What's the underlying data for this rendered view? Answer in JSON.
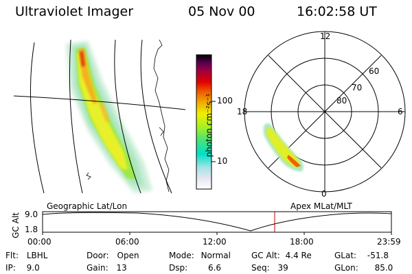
{
  "header": {
    "instrument": "Ultraviolet Imager",
    "date": "05 Nov 00",
    "time": "16:02:58 UT"
  },
  "colorbar": {
    "label": "photon cm⁻²s⁻¹",
    "ticks": [
      "100",
      "10"
    ],
    "colors": [
      "#ffffff",
      "#e0e0f0",
      "#a0e0e0",
      "#00e0d0",
      "#40e080",
      "#a0f020",
      "#f0f000",
      "#f0b000",
      "#f06000",
      "#e00000",
      "#a00040",
      "#5a0050",
      "#000000"
    ]
  },
  "map_panels": {
    "left_caption": "Geographic Lat/Lon",
    "right_caption": "Apex MLat/MLT"
  },
  "polar": {
    "mlt_labels": {
      "top": "12",
      "right": "6",
      "bottom": "0",
      "left": "18"
    },
    "lat_labels": [
      "60",
      "70",
      "80"
    ]
  },
  "altitude_plot": {
    "ylabel": "GC Alt",
    "yticks": [
      "9.0",
      "1.8"
    ],
    "xticks": [
      "00:00",
      "06:00",
      "12:00",
      "18:00",
      "23:59"
    ],
    "marker_color": "#c00000"
  },
  "info": {
    "flt": {
      "label": "Flt:",
      "value": "LBHL"
    },
    "ip": {
      "label": "IP:",
      "value": "9.0"
    },
    "door": {
      "label": "Door:",
      "value": "Open"
    },
    "gain": {
      "label": "Gain:",
      "value": "13"
    },
    "mode": {
      "label": "Mode:",
      "value": "Normal"
    },
    "dsp": {
      "label": "Dsp:",
      "value": "6.6"
    },
    "gcalt": {
      "label": "GC Alt:",
      "value": "4.4 Re"
    },
    "seq": {
      "label": "Seq:",
      "value": "39"
    },
    "glat": {
      "label": "GLat:",
      "value": "-51.8"
    },
    "glon": {
      "label": "GLon:",
      "value": "85.0"
    }
  }
}
